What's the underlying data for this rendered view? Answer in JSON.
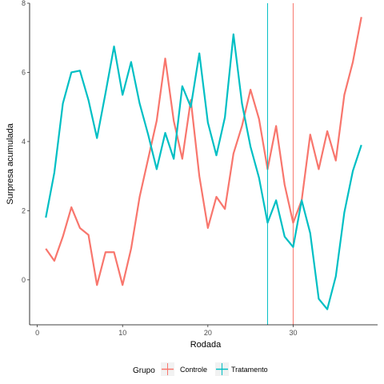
{
  "chart_data": {
    "type": "line",
    "xlabel": "Rodada",
    "ylabel": "Surpresa acumulada",
    "xlim": [
      -0.9,
      39.9
    ],
    "ylim": [
      -1.3,
      8.0
    ],
    "x_ticks": [
      0,
      10,
      20,
      30
    ],
    "y_ticks": [
      0,
      2,
      4,
      6,
      8
    ],
    "x_tick_labels": [
      "0",
      "10",
      "20",
      "30"
    ],
    "y_tick_labels": [
      "0",
      "2",
      "4",
      "6",
      "8"
    ],
    "grid": false,
    "legend": {
      "title": "Grupo",
      "position": "bottom"
    },
    "series": [
      {
        "name": "Controle",
        "color": "#F8766D",
        "x": [
          1,
          2,
          3,
          4,
          5,
          6,
          7,
          8,
          9,
          10,
          11,
          12,
          13,
          14,
          15,
          16,
          17,
          18,
          19,
          20,
          21,
          22,
          23,
          24,
          25,
          26,
          27,
          28,
          29,
          30,
          31,
          32,
          33,
          34,
          35,
          36,
          37,
          38
        ],
        "values": [
          0.9,
          0.55,
          1.25,
          2.1,
          1.5,
          1.3,
          -0.15,
          0.8,
          0.8,
          -0.15,
          0.9,
          2.4,
          3.5,
          4.6,
          6.4,
          4.6,
          3.5,
          5.2,
          3.0,
          1.5,
          2.4,
          2.05,
          3.65,
          4.45,
          5.5,
          4.65,
          3.2,
          4.45,
          2.75,
          1.65,
          2.3,
          4.2,
          3.2,
          4.3,
          3.45,
          5.35,
          6.3,
          7.6
        ],
        "vline": 30
      },
      {
        "name": "Tratamento",
        "color": "#00BFC4",
        "x": [
          1,
          2,
          3,
          4,
          5,
          6,
          7,
          8,
          9,
          10,
          11,
          12,
          13,
          14,
          15,
          16,
          17,
          18,
          19,
          20,
          21,
          22,
          23,
          24,
          25,
          26,
          27,
          28,
          29,
          30,
          31,
          32,
          33,
          34,
          35,
          36,
          37,
          38
        ],
        "values": [
          1.8,
          3.1,
          5.1,
          6.0,
          6.05,
          5.2,
          4.1,
          5.4,
          6.75,
          5.35,
          6.3,
          5.1,
          4.2,
          3.2,
          4.25,
          3.5,
          5.6,
          5.0,
          6.55,
          4.55,
          3.6,
          4.7,
          7.1,
          5.1,
          3.85,
          2.95,
          1.65,
          2.3,
          1.25,
          0.95,
          2.3,
          1.35,
          -0.55,
          -0.85,
          0.1,
          1.95,
          3.15,
          3.9
        ],
        "vline": 27
      }
    ]
  }
}
